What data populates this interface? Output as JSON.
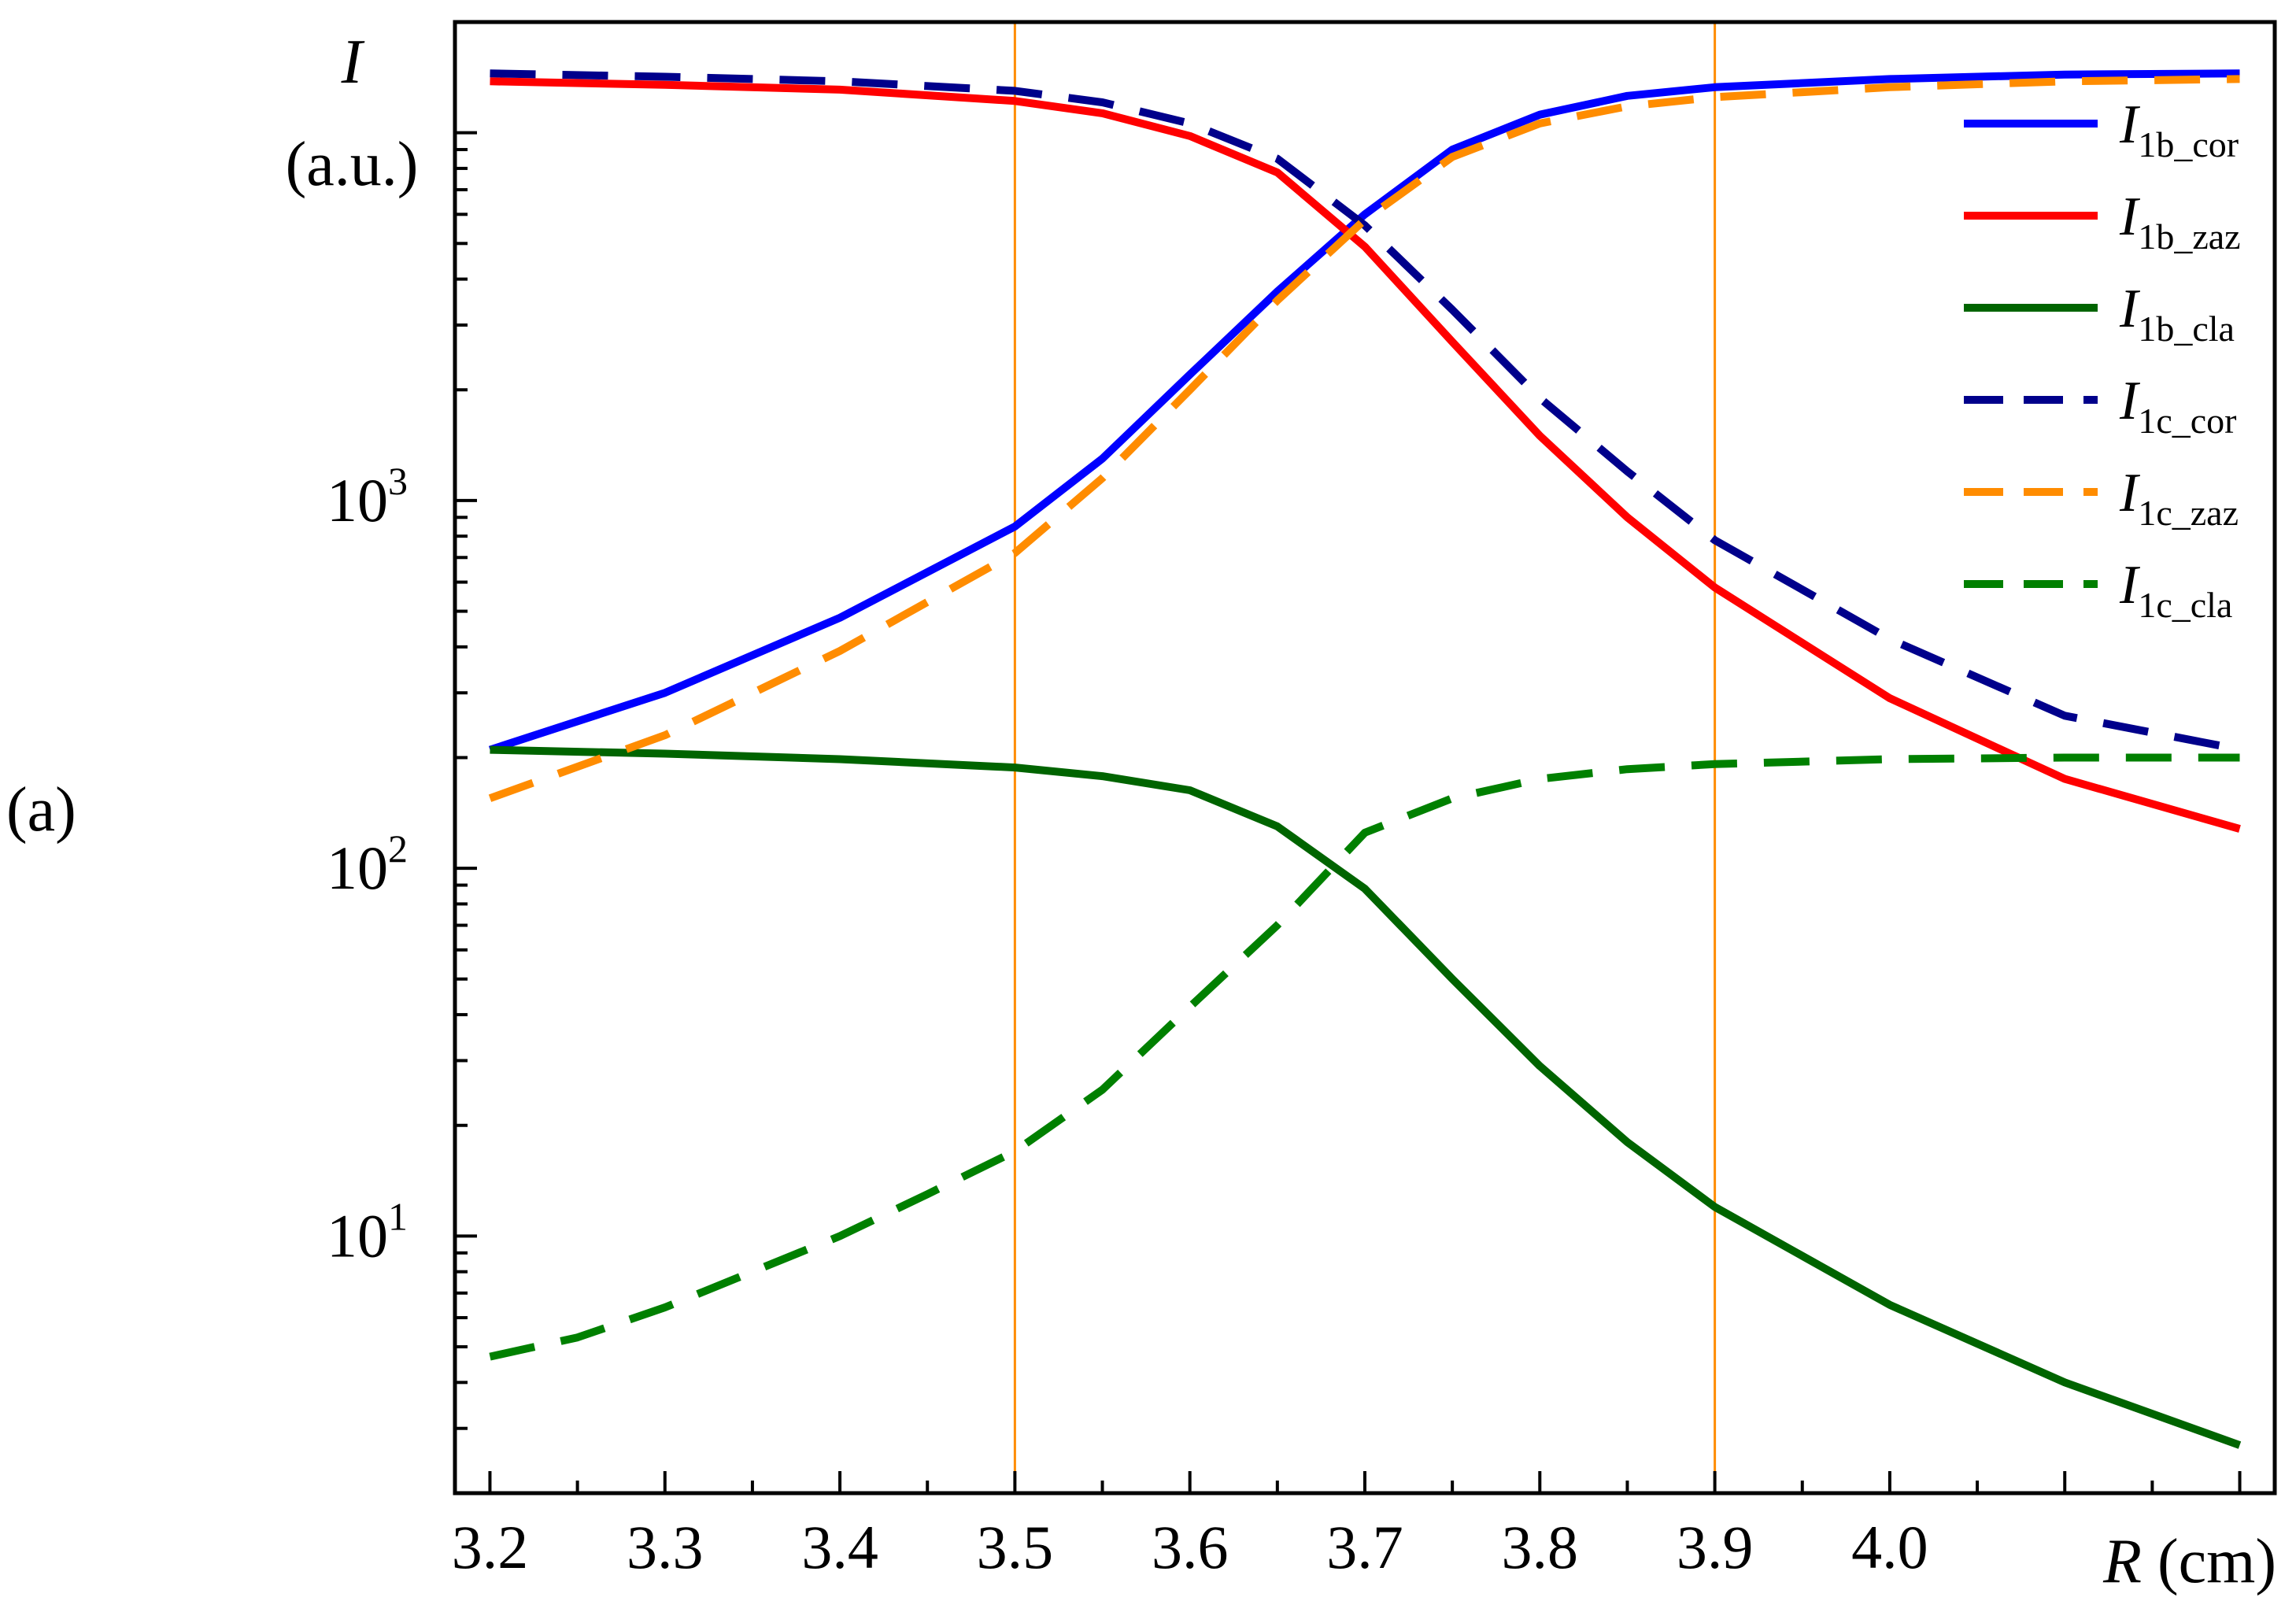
{
  "panel_label": "(a)",
  "chart_data": {
    "type": "line",
    "title": "",
    "xlabel": {
      "symbol": "R",
      "unit": "(cm)"
    },
    "ylabel": {
      "symbol": "I",
      "unit": "(a.u.)"
    },
    "xlim": [
      3.18,
      4.22
    ],
    "ylim": [
      2,
      20000
    ],
    "yscale": "log",
    "x_ticks": [
      "3.2",
      "3.3",
      "3.4",
      "3.5",
      "3.6",
      "3.7",
      "3.8",
      "3.9",
      "4.0"
    ],
    "y_ticks": [
      {
        "value": 10,
        "base": "10",
        "exp": "1"
      },
      {
        "value": 100,
        "base": "10",
        "exp": "2"
      },
      {
        "value": 1000,
        "base": "10",
        "exp": "3"
      }
    ],
    "vertical_lines": [
      {
        "x": 3.5,
        "color": "#ff8c00"
      },
      {
        "x": 3.9,
        "color": "#ff8c00"
      }
    ],
    "legend_position": "top-right",
    "series": [
      {
        "name": "I1b_cor",
        "label_main": "I",
        "label_sub": "1b_cor",
        "color": "#0000ff",
        "dash": "solid",
        "x": [
          3.2,
          3.3,
          3.4,
          3.5,
          3.55,
          3.6,
          3.65,
          3.7,
          3.75,
          3.8,
          3.85,
          3.9,
          4.0,
          4.1,
          4.2
        ],
        "y": [
          210,
          300,
          480,
          850,
          1300,
          2200,
          3700,
          6000,
          9000,
          11200,
          12600,
          13300,
          14000,
          14400,
          14500
        ]
      },
      {
        "name": "I1b_zaz",
        "label_main": "I",
        "label_sub": "1b_zaz",
        "color": "#ff0000",
        "dash": "solid",
        "x": [
          3.2,
          3.3,
          3.4,
          3.5,
          3.55,
          3.6,
          3.65,
          3.7,
          3.75,
          3.8,
          3.85,
          3.9,
          4.0,
          4.1,
          4.2
        ],
        "y": [
          13800,
          13500,
          13100,
          12200,
          11300,
          9800,
          7800,
          4900,
          2700,
          1500,
          900,
          580,
          290,
          175,
          128
        ]
      },
      {
        "name": "I1b_cla",
        "label_main": "I",
        "label_sub": "1b_cla",
        "color": "#006400",
        "dash": "solid",
        "x": [
          3.2,
          3.3,
          3.4,
          3.5,
          3.55,
          3.6,
          3.65,
          3.7,
          3.75,
          3.8,
          3.85,
          3.9,
          4.0,
          4.1,
          4.2
        ],
        "y": [
          210,
          205,
          198,
          188,
          178,
          163,
          130,
          88,
          50,
          29,
          18,
          12,
          6.5,
          4,
          2.7
        ]
      },
      {
        "name": "I1c_cor",
        "label_main": "I",
        "label_sub": "1c_cor",
        "color": "#00008b",
        "dash": "dashed",
        "x": [
          3.2,
          3.3,
          3.4,
          3.5,
          3.55,
          3.6,
          3.65,
          3.7,
          3.75,
          3.8,
          3.85,
          3.9,
          4.0,
          4.1,
          4.19
        ],
        "y": [
          14500,
          14200,
          13800,
          13000,
          12100,
          10600,
          8500,
          5600,
          3300,
          1900,
          1200,
          780,
          420,
          260,
          215
        ]
      },
      {
        "name": "I1c_zaz",
        "label_main": "I",
        "label_sub": "1c_zaz",
        "color": "#ff8c00",
        "dash": "dashed",
        "x": [
          3.2,
          3.3,
          3.4,
          3.5,
          3.55,
          3.6,
          3.65,
          3.7,
          3.75,
          3.8,
          3.85,
          3.9,
          4.0,
          4.1,
          4.2
        ],
        "y": [
          155,
          230,
          390,
          720,
          1150,
          2000,
          3500,
          5800,
          8600,
          10600,
          11800,
          12500,
          13300,
          13800,
          14000
        ]
      },
      {
        "name": "I1c_cla",
        "label_main": "I",
        "label_sub": "1c_cla",
        "color": "#008000",
        "dash": "dashed",
        "x": [
          3.2,
          3.25,
          3.3,
          3.35,
          3.4,
          3.45,
          3.5,
          3.55,
          3.6,
          3.65,
          3.7,
          3.75,
          3.8,
          3.85,
          3.9,
          4.0,
          4.1,
          4.2
        ],
        "y": [
          4.7,
          5.3,
          6.4,
          8,
          10,
          13,
          17,
          25,
          42,
          70,
          125,
          155,
          175,
          186,
          192,
          198,
          200,
          200
        ]
      }
    ]
  }
}
